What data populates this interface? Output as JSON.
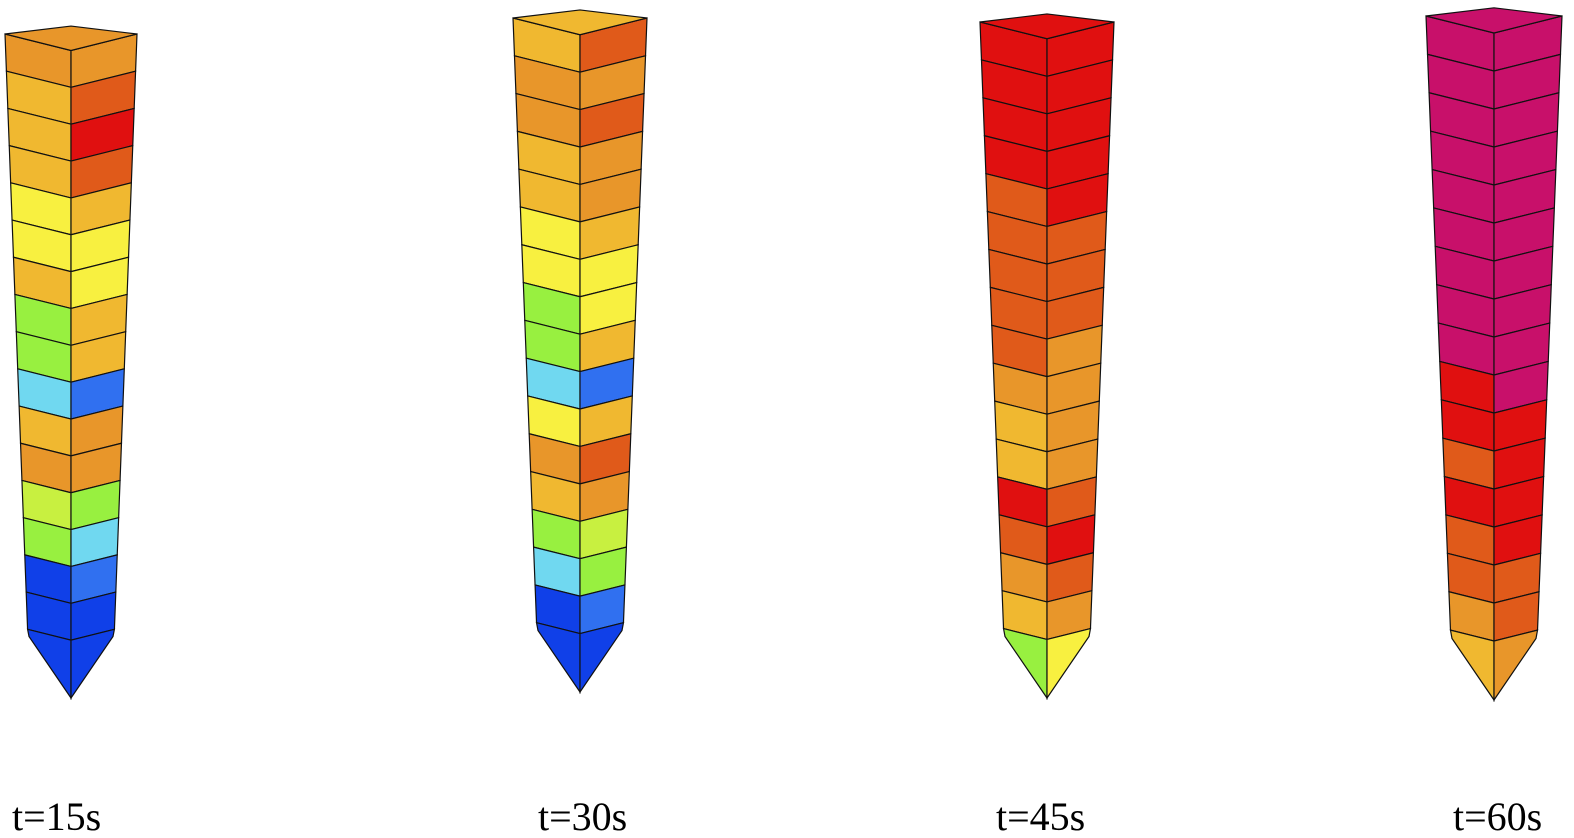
{
  "labels": [
    "t=15s",
    "t=30s",
    "t=45s",
    "t=60s"
  ]
}
